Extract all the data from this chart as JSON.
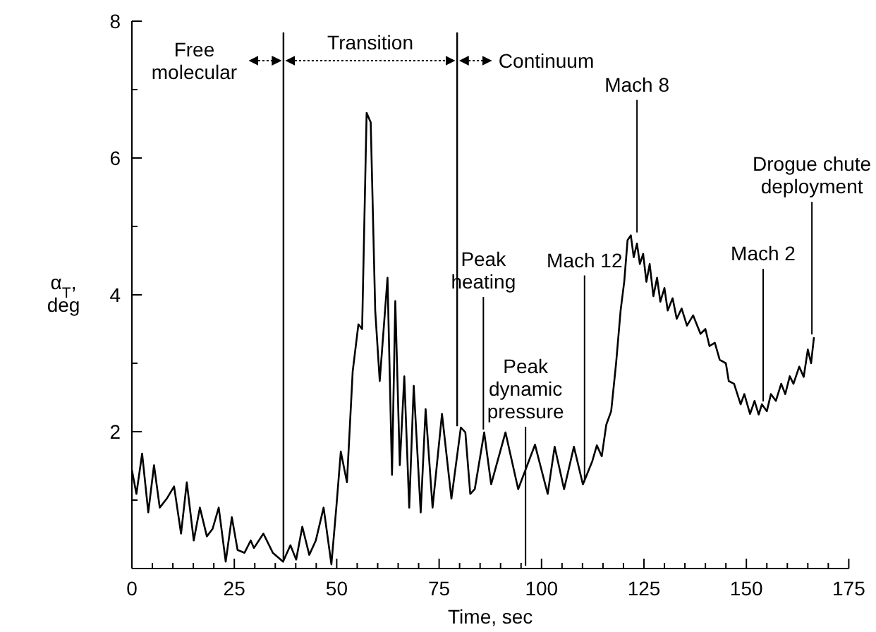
{
  "chart_data": {
    "type": "line",
    "xlabel": "Time, sec",
    "ylabel": "α$_{T}$, deg",
    "xlim": [
      0,
      175
    ],
    "ylim": [
      0,
      8
    ],
    "xticks": [
      0,
      {
        "value": 5,
        "label": null
      },
      {
        "value": 10,
        "label": null
      },
      {
        "value": 15,
        "label": null
      },
      {
        "value": 20,
        "label": null
      },
      25,
      {
        "value": 30,
        "label": null
      },
      {
        "value": 35,
        "label": null
      },
      {
        "value": 40,
        "label": null
      },
      {
        "value": 45,
        "label": null
      },
      50,
      {
        "value": 55,
        "label": null
      },
      {
        "value": 60,
        "label": null
      },
      {
        "value": 65,
        "label": null
      },
      {
        "value": 70,
        "label": null
      },
      75,
      {
        "value": 80,
        "label": null
      },
      {
        "value": 85,
        "label": null
      },
      {
        "value": 90,
        "label": null
      },
      {
        "value": 95,
        "label": null
      },
      100,
      {
        "value": 105,
        "label": null
      },
      {
        "value": 110,
        "label": null
      },
      {
        "value": 115,
        "label": null
      },
      {
        "value": 120,
        "label": null
      },
      125,
      {
        "value": 130,
        "label": null
      },
      {
        "value": 135,
        "label": null
      },
      {
        "value": 140,
        "label": null
      },
      {
        "value": 145,
        "label": null
      },
      150,
      {
        "value": 155,
        "label": null
      },
      {
        "value": 160,
        "label": null
      },
      {
        "value": 165,
        "label": null
      },
      {
        "value": 170,
        "label": null
      },
      175
    ],
    "yticks": [
      {
        "value": 0,
        "label": null
      },
      {
        "value": 1,
        "label": null
      },
      2,
      {
        "value": 3,
        "label": null
      },
      4,
      {
        "value": 5,
        "label": null
      },
      6,
      {
        "value": 7,
        "label": null
      },
      8
    ],
    "series": [
      {
        "color": "#000000",
        "x": [
          0,
          1.1,
          2.5,
          4.0,
          5.4,
          6.8,
          8.5,
          10.3,
          12.0,
          13.4,
          15.1,
          16.6,
          18.3,
          19.7,
          21.2,
          22.9,
          24.4,
          25.8,
          27.5,
          29.0,
          29.8,
          32.1,
          34.4,
          36.9,
          38.7,
          40.1,
          41.6,
          43.3,
          44.9,
          46.8,
          48.7,
          49.9,
          51.0,
          52.5,
          53.9,
          55.3,
          56.2,
          57.3,
          58.3,
          59.4,
          60.5,
          62.4,
          63.5,
          64.3,
          65.4,
          66.5,
          67.7,
          68.8,
          70.5,
          71.7,
          73.4,
          75.7,
          78.0,
          80.3,
          81.4,
          82.6,
          83.7,
          86.0,
          87.7,
          91.2,
          94.3,
          98.4,
          101.5,
          103.2,
          105.5,
          107.9,
          110.1,
          112.4,
          113.5,
          114.7,
          115.8,
          117.0,
          118.2,
          119.3,
          120.2,
          121.0,
          121.8,
          122.5,
          123.3,
          124.0,
          124.8,
          125.6,
          126.4,
          127.3,
          128.2,
          129.0,
          130.0,
          130.8,
          132.0,
          133.0,
          134.2,
          135.5,
          137.0,
          138.8,
          140.0,
          141.0,
          142.3,
          143.5,
          145.0,
          145.7,
          147.0,
          148.6,
          149.5,
          150.9,
          152.0,
          153.0,
          153.8,
          155.0,
          156.0,
          157.2,
          158.5,
          159.5,
          160.6,
          161.5,
          162.9,
          164.0,
          165.0,
          165.8,
          166.5
        ],
        "values": [
          1.44,
          1.09,
          1.68,
          0.82,
          1.51,
          0.89,
          1.02,
          1.2,
          0.51,
          1.26,
          0.41,
          0.89,
          0.47,
          0.58,
          0.89,
          0.1,
          0.75,
          0.27,
          0.23,
          0.41,
          0.3,
          0.51,
          0.23,
          0.1,
          0.34,
          0.13,
          0.61,
          0.2,
          0.41,
          0.89,
          0.06,
          0.89,
          1.71,
          1.26,
          2.88,
          3.57,
          3.5,
          6.66,
          6.52,
          3.77,
          2.74,
          4.25,
          1.37,
          3.91,
          1.51,
          2.81,
          0.89,
          2.67,
          0.82,
          2.33,
          0.89,
          2.26,
          1.02,
          2.06,
          1.99,
          1.09,
          1.16,
          1.99,
          1.23,
          1.99,
          1.16,
          1.81,
          1.09,
          1.78,
          1.16,
          1.78,
          1.23,
          1.57,
          1.8,
          1.64,
          2.1,
          2.3,
          3.0,
          3.77,
          4.2,
          4.8,
          4.87,
          4.55,
          4.75,
          4.45,
          4.6,
          4.19,
          4.45,
          3.98,
          4.25,
          3.9,
          4.1,
          3.77,
          3.95,
          3.65,
          3.8,
          3.55,
          3.7,
          3.43,
          3.5,
          3.25,
          3.3,
          3.05,
          3.0,
          2.74,
          2.7,
          2.4,
          2.55,
          2.26,
          2.45,
          2.25,
          2.4,
          2.3,
          2.55,
          2.45,
          2.7,
          2.55,
          2.81,
          2.7,
          2.95,
          2.8,
          3.2,
          3.0,
          3.38
        ]
      }
    ],
    "ref_lines": [
      {
        "axis": "x",
        "value": 37
      },
      {
        "axis": "x",
        "value": 79.4
      },
      {
        "axis": "x",
        "value": 85.8,
        "label": "Peak\nheating"
      },
      {
        "axis": "x",
        "value": 96.1,
        "label": "Peak\ndynamic\npressure"
      },
      {
        "axis": "x",
        "value": 110.5,
        "label": "Mach 12"
      },
      {
        "axis": "x",
        "value": 123.3,
        "label": "Mach 8"
      },
      {
        "axis": "x",
        "value": 154.1,
        "label": "Mach 2"
      },
      {
        "axis": "x",
        "value": 166,
        "label": "Drogue chute\ndeployment"
      }
    ],
    "annotations": [
      "Free\nmolecular",
      "Transition",
      "Continuum"
    ]
  }
}
